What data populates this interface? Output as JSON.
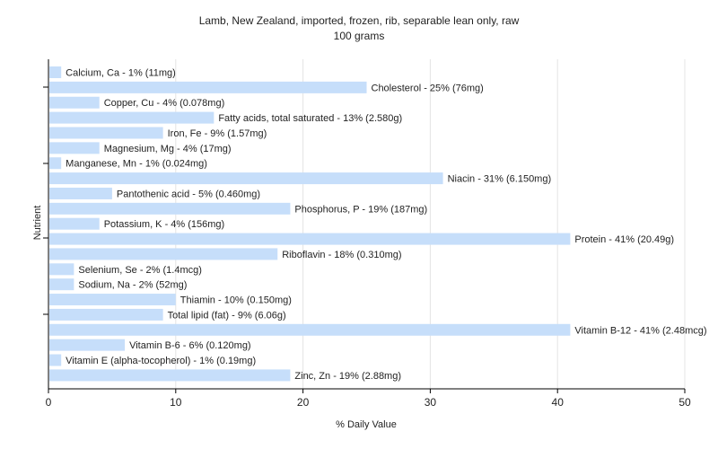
{
  "chart_data": {
    "type": "bar",
    "orientation": "horizontal",
    "title": "Lamb, New Zealand, imported, frozen, rib, separable lean only, raw",
    "subtitle": "100 grams",
    "xlabel": "% Daily Value",
    "ylabel": "Nutrient",
    "xlim": [
      0,
      50
    ],
    "xticks": [
      0,
      10,
      20,
      30,
      40,
      50
    ],
    "grid": true,
    "bar_color": "#c6defa",
    "categories": [
      "Calcium, Ca",
      "Cholesterol",
      "Copper, Cu",
      "Fatty acids, total saturated",
      "Iron, Fe",
      "Magnesium, Mg",
      "Manganese, Mn",
      "Niacin",
      "Pantothenic acid",
      "Phosphorus, P",
      "Potassium, K",
      "Protein",
      "Riboflavin",
      "Selenium, Se",
      "Sodium, Na",
      "Thiamin",
      "Total lipid (fat)",
      "Vitamin B-12",
      "Vitamin B-6",
      "Vitamin E (alpha-tocopherol)",
      "Zinc, Zn"
    ],
    "values": [
      1,
      25,
      4,
      13,
      9,
      4,
      1,
      31,
      5,
      19,
      4,
      41,
      18,
      2,
      2,
      10,
      9,
      41,
      6,
      1,
      19
    ],
    "labels": [
      "Calcium, Ca - 1% (11mg)",
      "Cholesterol - 25% (76mg)",
      "Copper, Cu - 4% (0.078mg)",
      "Fatty acids, total saturated - 13% (2.580g)",
      "Iron, Fe - 9% (1.57mg)",
      "Magnesium, Mg - 4% (17mg)",
      "Manganese, Mn - 1% (0.024mg)",
      "Niacin - 31% (6.150mg)",
      "Pantothenic acid - 5% (0.460mg)",
      "Phosphorus, P - 19% (187mg)",
      "Potassium, K - 4% (156mg)",
      "Protein - 41% (20.49g)",
      "Riboflavin - 18% (0.310mg)",
      "Selenium, Se - 2% (1.4mcg)",
      "Sodium, Na - 2% (52mg)",
      "Thiamin - 10% (0.150mg)",
      "Total lipid (fat) - 9% (6.06g)",
      "Vitamin B-12 - 41% (2.48mcg)",
      "Vitamin B-6 - 6% (0.120mg)",
      "Vitamin E (alpha-tocopherol) - 1% (0.19mg)",
      "Zinc, Zn - 19% (2.88mg)"
    ]
  }
}
